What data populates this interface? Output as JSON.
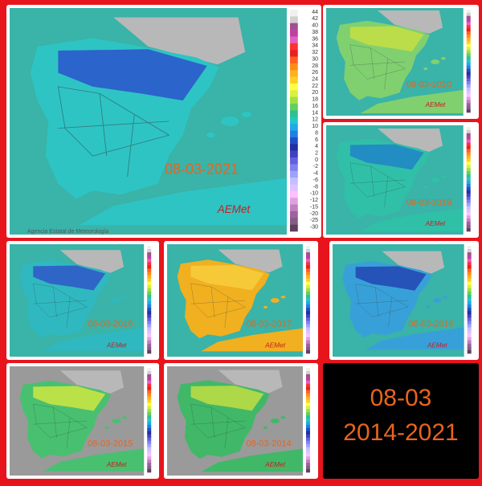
{
  "main_map": {
    "date": "08-03-2021",
    "agency": "Agencia Estatal de Meteorología",
    "logo": "AEMet",
    "legend": [
      44,
      42,
      40,
      38,
      36,
      34,
      32,
      30,
      28,
      26,
      24,
      22,
      20,
      18,
      16,
      14,
      12,
      10,
      8,
      6,
      4,
      2,
      0,
      -2,
      -4,
      -6,
      -8,
      -10,
      -12,
      -15,
      -20,
      -25,
      -30
    ]
  },
  "maps": [
    {
      "date": "08-03-2020",
      "logo": "AEMet"
    },
    {
      "date": "08-03-2019",
      "logo": "AEMet"
    },
    {
      "date": "08-03-2018",
      "logo": "AEMet"
    },
    {
      "date": "08-03-2017",
      "logo": "AEMet"
    },
    {
      "date": "08-03-2016",
      "logo": "AEMet"
    },
    {
      "date": "08-03-2015",
      "logo": "AEMet"
    },
    {
      "date": "08-03-2014",
      "logo": "AEMet"
    }
  ],
  "caption": {
    "day": "08-03",
    "years": "2014-2021"
  }
}
